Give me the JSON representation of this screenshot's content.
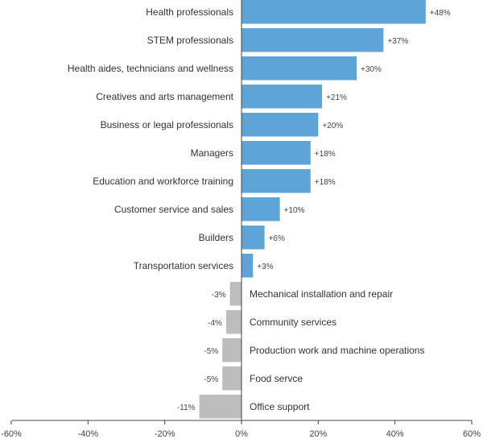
{
  "chart_data": {
    "type": "bar",
    "orientation": "horizontal",
    "categories": [
      "Health professionals",
      "STEM professionals",
      "Health aides, technicians and wellness",
      "Creatives and arts management",
      "Business or legal professionals",
      "Managers",
      "Education and workforce training",
      "Customer service and sales",
      "Builders",
      "Transportation services",
      "Mechanical installation and repair",
      "Community services",
      "Production work and machine operations",
      "Food servce",
      "Office support"
    ],
    "values": [
      48,
      37,
      30,
      21,
      20,
      18,
      18,
      10,
      6,
      3,
      -3,
      -4,
      -5,
      -5,
      -11
    ],
    "value_labels": [
      "+48%",
      "+37%",
      "+30%",
      "+21%",
      "+20%",
      "+18%",
      "+18%",
      "+10%",
      "+6%",
      "+3%",
      "-3%",
      "-4%",
      "-5%",
      "-5%",
      "-11%"
    ],
    "xlim": [
      -60,
      60
    ],
    "x_ticks": [
      -60,
      -40,
      -20,
      0,
      20,
      40,
      60
    ],
    "x_tick_labels": [
      "-60%",
      "-40%",
      "-20%",
      "0%",
      "20%",
      "40%",
      "60%"
    ],
    "grid": false,
    "colors": {
      "positive": "#5fa4d8",
      "negative": "#bdbdbd",
      "axis": "#444444"
    }
  }
}
